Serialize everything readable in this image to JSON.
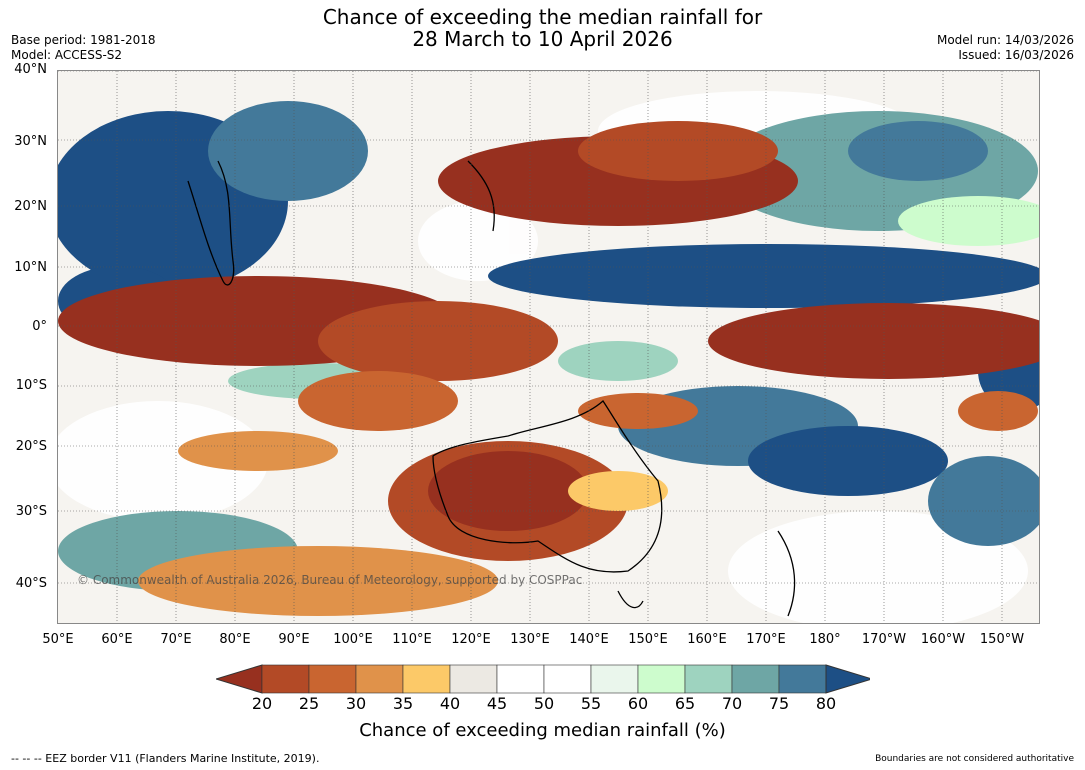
{
  "header": {
    "title_line1": "Chance of exceeding the median rainfall for",
    "title_line2": "28 March to 10 April 2026",
    "base_period": "Base period: 1981-2018",
    "model": "Model: ACCESS-S2",
    "model_run": "Model run: 14/03/2026",
    "issued": "Issued: 16/03/2026"
  },
  "map": {
    "lat_labels": [
      "40°N",
      "30°N",
      "20°N",
      "10°N",
      "0°",
      "10°S",
      "20°S",
      "30°S",
      "40°S"
    ],
    "lon_labels": [
      "50°E",
      "60°E",
      "70°E",
      "80°E",
      "90°E",
      "100°E",
      "110°E",
      "120°E",
      "130°E",
      "140°E",
      "150°E",
      "160°E",
      "170°E",
      "180°",
      "170°W",
      "160°W",
      "150°W"
    ],
    "copyright": "© Commonwealth of Australia 2026, Bureau of Meteorology, supported by COSPPac"
  },
  "colorbar": {
    "ticks": [
      "20",
      "25",
      "30",
      "35",
      "40",
      "45",
      "50",
      "55",
      "60",
      "65",
      "70",
      "75",
      "80"
    ],
    "colors": [
      "#97301f",
      "#b34a26",
      "#c96530",
      "#e0924a",
      "#fcc968",
      "#ece9e3",
      "#ffffff",
      "#ffffff",
      "#eaf6ec",
      "#cdfccd",
      "#9ed3bf",
      "#6ea6a5",
      "#43799a",
      "#1d4f85"
    ],
    "label": "Chance of exceeding median rainfall (%)"
  },
  "footer": {
    "eez_note": "--  --  -- EEZ border V11 (Flanders Marine Institute, 2019).",
    "boundaries_note": "Boundaries are not considered authoritative"
  }
}
